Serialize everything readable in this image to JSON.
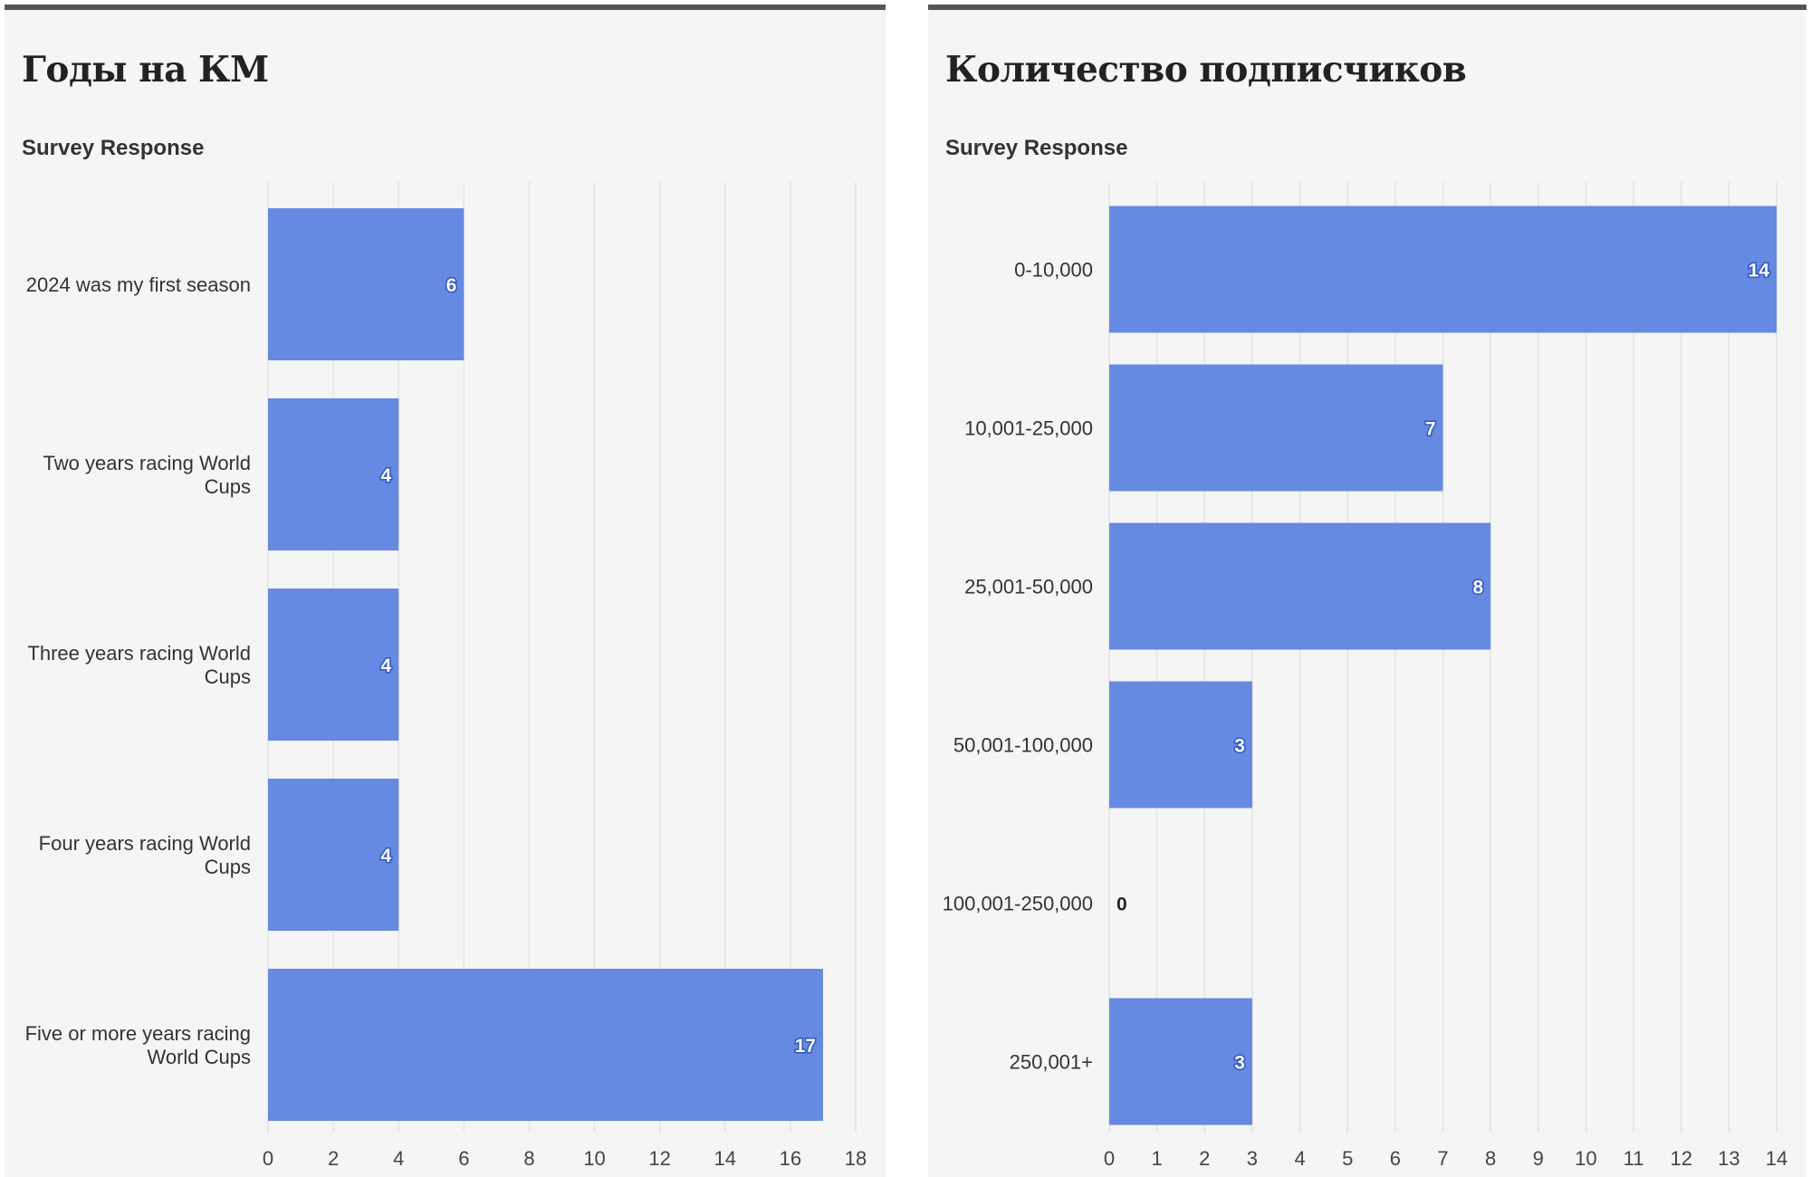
{
  "colors": {
    "bar": "#6689e2",
    "grid": "#e3e3e3",
    "panel_bg": "#f5f5f5",
    "top_rule": "#555555"
  },
  "chart_data": [
    {
      "type": "bar",
      "orientation": "horizontal",
      "title": "Годы на КМ",
      "ylabel": "Survey Response",
      "xlabel": "",
      "categories": [
        "2024 was my first season",
        "Two years racing World Cups",
        "Three years racing World Cups",
        "Four years racing World Cups",
        "Five or more years racing World Cups"
      ],
      "values": [
        6,
        4,
        4,
        4,
        17
      ],
      "xlim": [
        0,
        18
      ],
      "xticks": [
        0,
        2,
        4,
        6,
        8,
        10,
        12,
        14,
        16,
        18
      ],
      "grid": true
    },
    {
      "type": "bar",
      "orientation": "horizontal",
      "title": "Количество подписчиков",
      "ylabel": "Survey Response",
      "xlabel": "",
      "categories": [
        "0-10,000",
        "10,001-25,000",
        "25,001-50,000",
        "50,001-100,000",
        "100,001-250,000",
        "250,001+"
      ],
      "values": [
        14,
        7,
        8,
        3,
        0,
        3
      ],
      "xlim": [
        0,
        14
      ],
      "xticks": [
        0,
        1,
        2,
        3,
        4,
        5,
        6,
        7,
        8,
        9,
        10,
        11,
        12,
        13,
        14
      ],
      "grid": true
    }
  ]
}
